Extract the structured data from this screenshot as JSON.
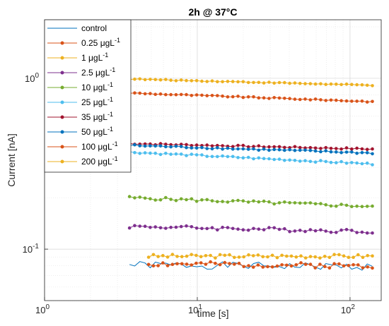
{
  "chart_data": {
    "type": "line",
    "title": "2h @ 37°C",
    "xlabel": "time [s]",
    "ylabel": "Current [nA]",
    "xscale": "log",
    "yscale": "log",
    "xlim": [
      1,
      160
    ],
    "ylim": [
      0.05,
      2.2
    ],
    "grid": true,
    "legend_position": "top-left",
    "x_ticks": [
      {
        "value": 1,
        "base": "10",
        "exp": "0"
      },
      {
        "value": 10,
        "base": "10",
        "exp": "1"
      },
      {
        "value": 100,
        "base": "10",
        "exp": "2"
      }
    ],
    "y_ticks": [
      {
        "value": 0.1,
        "base": "10",
        "exp": "-1"
      },
      {
        "value": 1,
        "base": "10",
        "exp": "0"
      }
    ],
    "series": [
      {
        "name": "control",
        "unit": "",
        "color": "#0072BD",
        "marker": false,
        "x_start": 3.6,
        "x_end": 140,
        "base": 0.081,
        "end": 0.079,
        "amp": 0.05,
        "seed": 1
      },
      {
        "name": "0.25 ",
        "unit": "μgL",
        "exp": "-1",
        "color": "#D95319",
        "marker": true,
        "x_start": 4.8,
        "x_end": 140,
        "base": 0.082,
        "end": 0.08,
        "amp": 0.035,
        "seed": 2
      },
      {
        "name": "1 ",
        "unit": "μgL",
        "exp": "-1",
        "color": "#EDB120",
        "marker": true,
        "x_start": 4.8,
        "x_end": 140,
        "base": 0.091,
        "end": 0.091,
        "amp": 0.025,
        "seed": 3
      },
      {
        "name": "2.5 ",
        "unit": "μgL",
        "exp": "-1",
        "color": "#7E2F8E",
        "marker": true,
        "x_start": 3.6,
        "x_end": 140,
        "base": 0.136,
        "end": 0.127,
        "amp": 0.025,
        "seed": 4
      },
      {
        "name": "10 ",
        "unit": "μgL",
        "exp": "-1",
        "color": "#77AC30",
        "marker": true,
        "x_start": 3.6,
        "x_end": 140,
        "base": 0.2,
        "end": 0.178,
        "amp": 0.02,
        "seed": 5
      },
      {
        "name": "25 ",
        "unit": "μgL",
        "exp": "-1",
        "color": "#4DBEEE",
        "marker": true,
        "x_start": 3.6,
        "x_end": 140,
        "base": 0.37,
        "end": 0.315,
        "amp": 0.012,
        "seed": 6
      },
      {
        "name": "35 ",
        "unit": "μgL",
        "exp": "-1",
        "color": "#A2142F",
        "marker": true,
        "x_start": 3.6,
        "x_end": 140,
        "base": 0.415,
        "end": 0.385,
        "amp": 0.01,
        "seed": 7
      },
      {
        "name": "50 ",
        "unit": "μgL",
        "exp": "-1",
        "color": "#0072BD",
        "marker": true,
        "x_start": 3.6,
        "x_end": 140,
        "base": 0.405,
        "end": 0.365,
        "amp": 0.012,
        "seed": 8
      },
      {
        "name": "100 ",
        "unit": "μgL",
        "exp": "-1",
        "color": "#D95319",
        "marker": true,
        "x_start": 3.6,
        "x_end": 140,
        "base": 0.82,
        "end": 0.73,
        "amp": 0.008,
        "seed": 9
      },
      {
        "name": "200 ",
        "unit": "μgL",
        "exp": "-1",
        "color": "#EDB120",
        "marker": true,
        "x_start": 3.6,
        "x_end": 140,
        "base": 0.99,
        "end": 0.91,
        "amp": 0.007,
        "seed": 10
      }
    ]
  }
}
